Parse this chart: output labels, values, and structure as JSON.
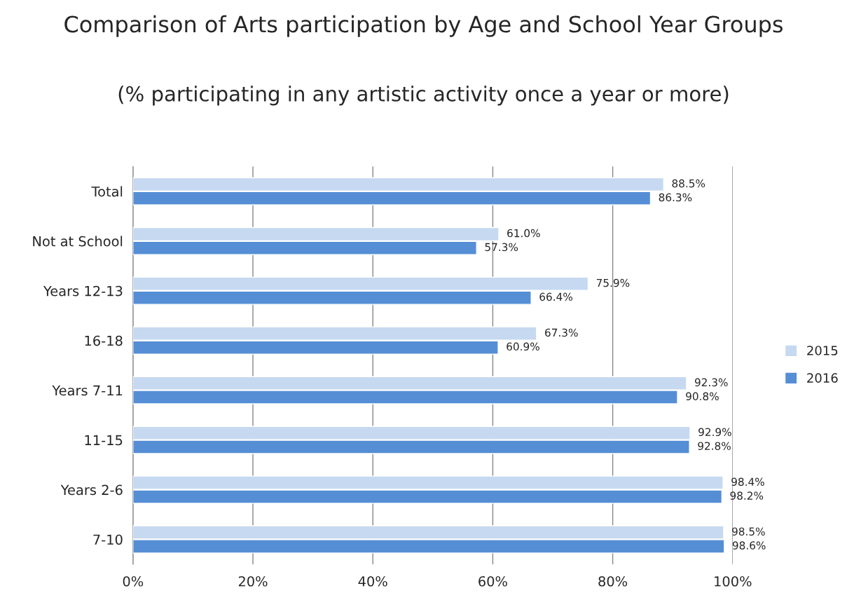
{
  "chart_data": {
    "type": "bar",
    "orientation": "horizontal",
    "title": "Comparison of Arts participation by Age and School Year Groups",
    "subtitle": "(% participating in any artistic activity once a year or more)",
    "categories": [
      "Total",
      "Not at School",
      "Years 12-13",
      "16-18",
      "Years 7-11",
      "11-15",
      "Years 2-6",
      "7-10"
    ],
    "series": [
      {
        "name": "2015",
        "color": "#c6d9f1",
        "values": [
          88.5,
          61.0,
          75.9,
          67.3,
          92.3,
          92.9,
          98.4,
          98.5
        ],
        "value_labels": [
          "88.5%",
          "61.0%",
          "75.9%",
          "67.3%",
          "92.3%",
          "92.9%",
          "98.4%",
          "98.5%"
        ]
      },
      {
        "name": "2016",
        "color": "#558ed5",
        "values": [
          86.3,
          57.3,
          66.4,
          60.9,
          90.8,
          92.8,
          98.2,
          98.6
        ],
        "value_labels": [
          "86.3%",
          "57.3%",
          "66.4%",
          "60.9%",
          "90.8%",
          "92.8%",
          "98.2%",
          "98.6%"
        ]
      }
    ],
    "xlim": [
      0,
      100
    ],
    "xticks": [
      {
        "value": 0,
        "label": "0%"
      },
      {
        "value": 20,
        "label": "20%"
      },
      {
        "value": 40,
        "label": "40%"
      },
      {
        "value": 60,
        "label": "60%"
      },
      {
        "value": 80,
        "label": "80%"
      },
      {
        "value": 100,
        "label": "100%"
      }
    ],
    "grid": "x",
    "legend": "right"
  }
}
